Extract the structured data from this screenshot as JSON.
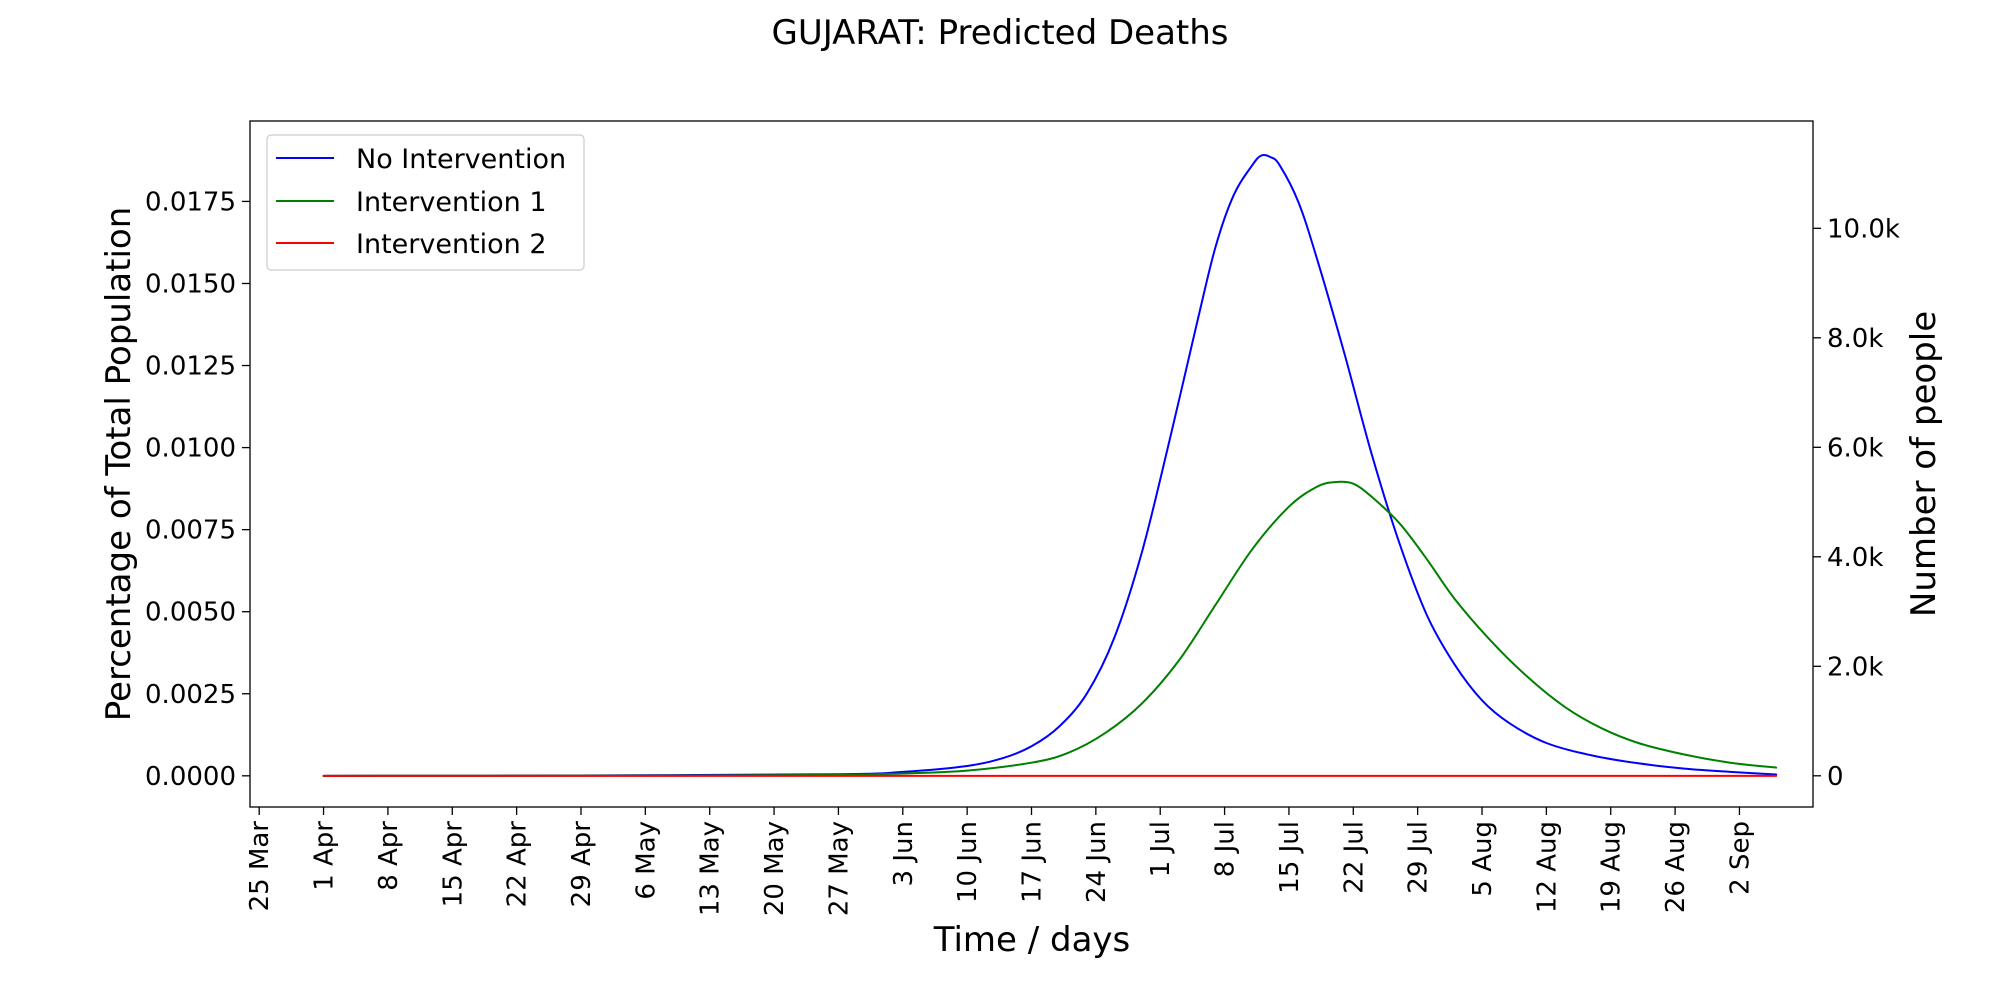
{
  "chart_data": {
    "type": "line",
    "title": "GUJARAT: Predicted Deaths",
    "xlabel": "Time / days",
    "ylabel": "Percentage of Total Population",
    "y2label": "Number of people",
    "x_ticks": [
      "25 Mar",
      "1 Apr",
      "8 Apr",
      "15 Apr",
      "22 Apr",
      "29 Apr",
      "6 May",
      "13 May",
      "20 May",
      "27 May",
      "3 Jun",
      "10 Jun",
      "17 Jun",
      "24 Jun",
      "1 Jul",
      "8 Jul",
      "15 Jul",
      "22 Jul",
      "29 Jul",
      "5 Aug",
      "12 Aug",
      "19 Aug",
      "26 Aug",
      "2 Sep"
    ],
    "y_ticks": [
      "0.0000",
      "0.0025",
      "0.0050",
      "0.0075",
      "0.0100",
      "0.0125",
      "0.0150",
      "0.0175"
    ],
    "y2_ticks": [
      "0",
      "2.0k",
      "4.0k",
      "6.0k",
      "8.0k",
      "10.0k"
    ],
    "ylim": [
      -0.00095,
      0.01995
    ],
    "y2lim": [
      -570,
      11960
    ],
    "legend_position": "top-left",
    "grid": false,
    "x_unit": "days since 25 Mar",
    "xlim": [
      -1,
      169
    ],
    "series": [
      {
        "name": "No Intervention",
        "color": "#0000ff",
        "points": [
          [
            7,
            0
          ],
          [
            35,
            1e-05
          ],
          [
            63,
            5e-05
          ],
          [
            70,
            0.00012
          ],
          [
            77,
            0.0003
          ],
          [
            81,
            0.00055
          ],
          [
            84,
            0.0009
          ],
          [
            87,
            0.0015
          ],
          [
            90,
            0.0025
          ],
          [
            93,
            0.0042
          ],
          [
            96,
            0.0068
          ],
          [
            99,
            0.0102
          ],
          [
            102,
            0.0138
          ],
          [
            104,
            0.0161
          ],
          [
            106,
            0.0177
          ],
          [
            108,
            0.0186
          ],
          [
            109,
            0.0189
          ],
          [
            110,
            0.01885
          ],
          [
            111,
            0.0186
          ],
          [
            113,
            0.0175
          ],
          [
            115,
            0.0158
          ],
          [
            118,
            0.0129
          ],
          [
            121,
            0.0098
          ],
          [
            124,
            0.0071
          ],
          [
            127,
            0.0049
          ],
          [
            130,
            0.0034
          ],
          [
            133,
            0.0023
          ],
          [
            136,
            0.0016
          ],
          [
            140,
            0.001
          ],
          [
            145,
            0.00062
          ],
          [
            150,
            0.00038
          ],
          [
            155,
            0.00022
          ],
          [
            160,
            0.00012
          ],
          [
            165,
            4e-05
          ]
        ]
      },
      {
        "name": "Intervention 1",
        "color": "#008000",
        "points": [
          [
            7,
            0
          ],
          [
            49,
            1e-05
          ],
          [
            63,
            3e-05
          ],
          [
            70,
            7e-05
          ],
          [
            77,
            0.00016
          ],
          [
            84,
            0.0004
          ],
          [
            88,
            0.0007
          ],
          [
            92,
            0.0013
          ],
          [
            96,
            0.0022
          ],
          [
            100,
            0.0035
          ],
          [
            104,
            0.0052
          ],
          [
            108,
            0.0069
          ],
          [
            112,
            0.0082
          ],
          [
            115,
            0.0088
          ],
          [
            117,
            0.00895
          ],
          [
            119,
            0.0089
          ],
          [
            121,
            0.0085
          ],
          [
            124,
            0.0077
          ],
          [
            127,
            0.0066
          ],
          [
            130,
            0.0054
          ],
          [
            134,
            0.0041
          ],
          [
            138,
            0.003
          ],
          [
            142,
            0.0021
          ],
          [
            146,
            0.00145
          ],
          [
            150,
            0.001
          ],
          [
            155,
            0.00065
          ],
          [
            160,
            0.0004
          ],
          [
            165,
            0.00025
          ]
        ]
      },
      {
        "name": "Intervention 2",
        "color": "#ff0000",
        "points": [
          [
            7,
            0
          ],
          [
            165,
            0
          ]
        ]
      }
    ]
  }
}
